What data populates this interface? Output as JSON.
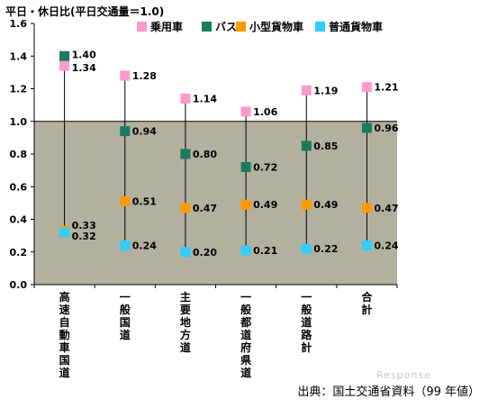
{
  "chart_data": {
    "type": "scatter",
    "title": "平日・休日比(平日交通量＝1.0)",
    "ylim": [
      0,
      1.6
    ],
    "yticks": [
      "0.0",
      "0.2",
      "0.4",
      "0.6",
      "0.8",
      "1.0",
      "1.2",
      "1.4",
      "1.6"
    ],
    "reference_band_upper": 1.0,
    "categories": [
      "高速自動車国道",
      "一般国道",
      "主要地方道",
      "一般都道府県道",
      "一般道路計",
      "合計"
    ],
    "series": [
      {
        "name": "乗用車",
        "color": "#ff99cc",
        "values": [
          1.34,
          1.28,
          1.14,
          1.06,
          1.19,
          1.21
        ],
        "labels": [
          "1.34",
          "1.28",
          "1.14",
          "1.06",
          "1.19",
          "1.21"
        ]
      },
      {
        "name": "バス",
        "color": "#1b7a5e",
        "values": [
          1.4,
          0.94,
          0.8,
          0.72,
          0.85,
          0.96
        ],
        "labels": [
          "1.40",
          "0.94",
          "0.80",
          "0.72",
          "0.85",
          "0.96"
        ]
      },
      {
        "name": "小型貨物車",
        "color": "#ff9900",
        "values": [
          0.33,
          0.51,
          0.47,
          0.49,
          0.49,
          0.47
        ],
        "labels": [
          "0.33",
          "0.51",
          "0.47",
          "0.49",
          "0.49",
          "0.47"
        ]
      },
      {
        "name": "普通貨物車",
        "color": "#33ccff",
        "values": [
          0.32,
          0.24,
          0.2,
          0.21,
          0.22,
          0.24
        ],
        "labels": [
          "0.32",
          "0.24",
          "0.20",
          "0.21",
          "0.22",
          "0.24"
        ]
      }
    ],
    "legend_position": "top",
    "grid": false
  },
  "source": "出典：国土交通省資料（99 年値）",
  "watermark": "Response"
}
